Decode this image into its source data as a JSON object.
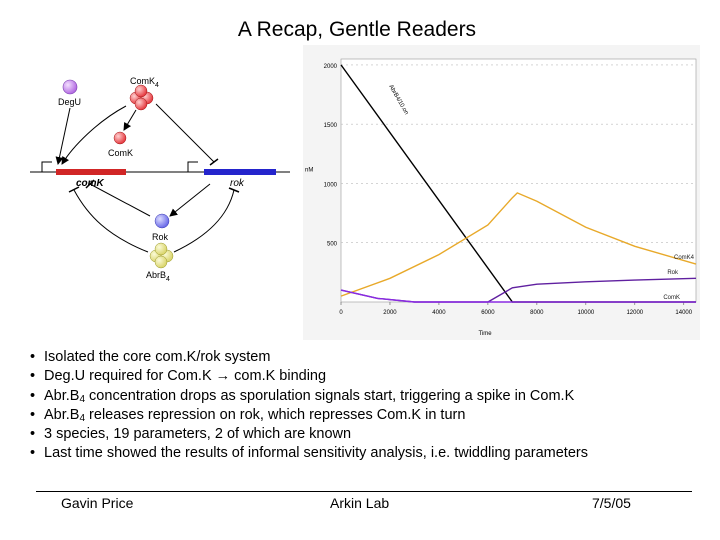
{
  "title": "A Recap, Gentle Readers",
  "diagram": {
    "labels": {
      "degu": "DegU",
      "comk4": "ComK",
      "comk4_sub": "4",
      "comk_monomer": "ComK",
      "comk_gene": "comK",
      "rok_gene": "rok",
      "rok_protein": "Rok",
      "abrb4": "AbrB",
      "abrb4_sub": "4"
    },
    "colors": {
      "purple": "#b36ae2",
      "red": "#e5393f",
      "blue": "#6a6ae8",
      "yellow": "#d9d46a",
      "comk_gene": "#d12626",
      "rok_gene": "#2424cc"
    }
  },
  "chart_data": {
    "type": "line",
    "xlabel": "Time",
    "ylabel": "nM",
    "xlim": [
      0,
      14500
    ],
    "ylim": [
      0,
      2050
    ],
    "x_ticks": [
      0,
      2000,
      4000,
      6000,
      8000,
      10000,
      12000,
      14000
    ],
    "y_ticks": [
      500,
      1000,
      1500,
      2000
    ],
    "series": [
      {
        "name": "AbrB4/10.on",
        "color": "#000000",
        "points": [
          [
            0,
            2000
          ],
          [
            7000,
            0
          ],
          [
            14500,
            0
          ]
        ]
      },
      {
        "name": "ComK4",
        "color": "#e8a92a",
        "points": [
          [
            0,
            50
          ],
          [
            2000,
            200
          ],
          [
            4000,
            400
          ],
          [
            6000,
            650
          ],
          [
            7000,
            880
          ],
          [
            7200,
            920
          ],
          [
            8000,
            850
          ],
          [
            10000,
            630
          ],
          [
            12000,
            470
          ],
          [
            14500,
            320
          ]
        ]
      },
      {
        "name": "Rok",
        "color": "#6020a0",
        "points": [
          [
            0,
            100
          ],
          [
            1500,
            30
          ],
          [
            3000,
            0
          ],
          [
            6000,
            0
          ],
          [
            7000,
            120
          ],
          [
            8000,
            150
          ],
          [
            10000,
            170
          ],
          [
            12000,
            185
          ],
          [
            14500,
            200
          ]
        ]
      },
      {
        "name": "ComK",
        "color": "#8a2be2",
        "points": [
          [
            0,
            100
          ],
          [
            1500,
            30
          ],
          [
            3000,
            0
          ],
          [
            14500,
            0
          ]
        ]
      }
    ]
  },
  "bullets": [
    {
      "parts": [
        {
          "t": "Isolated the core com.K/rok system"
        }
      ]
    },
    {
      "parts": [
        {
          "t": "Deg.U required for Com.K → com.K binding"
        }
      ]
    },
    {
      "parts": [
        {
          "t": "Abr.B"
        },
        {
          "t": "4",
          "sub": true
        },
        {
          "t": " concentration drops as sporulation signals start, triggering a spike in Com.K"
        }
      ]
    },
    {
      "parts": [
        {
          "t": "Abr.B"
        },
        {
          "t": "4",
          "sub": true
        },
        {
          "t": " releases repression on rok, which represses Com.K in turn"
        }
      ]
    },
    {
      "parts": [
        {
          "t": "3 species, 19 parameters, 2 of which are known"
        }
      ]
    },
    {
      "parts": [
        {
          "t": "Last time showed the results of informal sensitivity analysis, i.e. twiddling parameters"
        }
      ]
    }
  ],
  "footer": {
    "author": "Gavin Price",
    "lab": "Arkin Lab",
    "date": "7/5/05"
  }
}
